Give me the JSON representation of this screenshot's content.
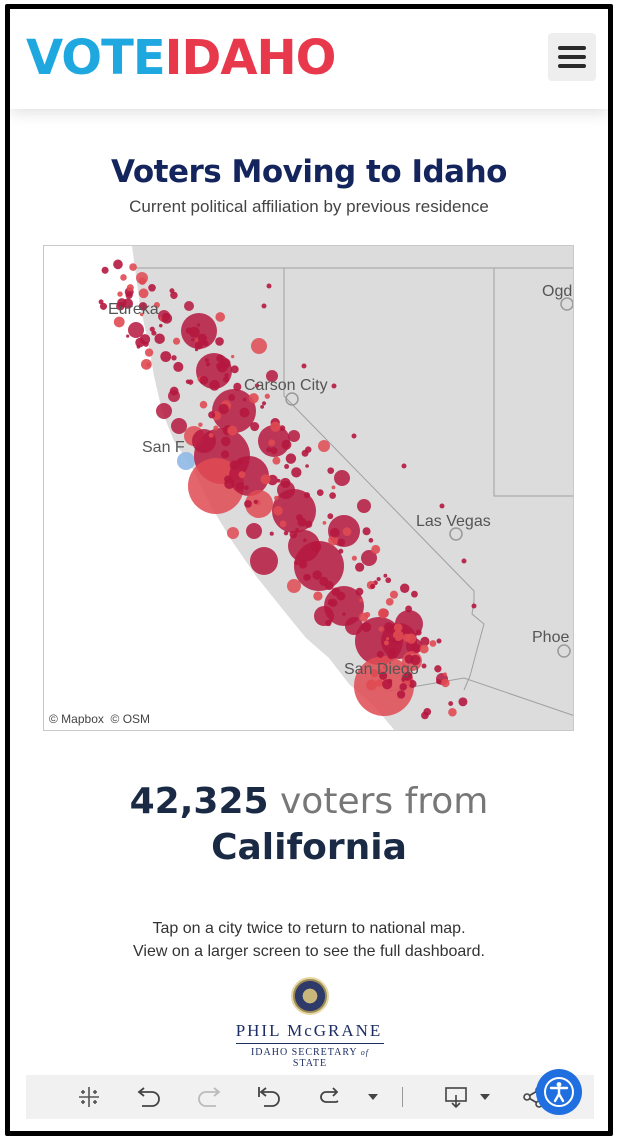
{
  "header": {
    "logo_vote": "VOTE",
    "logo_idaho": "IDAHO",
    "menu_icon": "hamburger-menu-icon"
  },
  "dashboard": {
    "title": "Voters Moving to Idaho",
    "subtitle": "Current political affiliation by previous residence"
  },
  "map": {
    "labels": {
      "eureka": "Eureka",
      "carson": "Carson City",
      "sanfran": "San F",
      "lasvegas": "Las Vegas",
      "ogden": "Ogd",
      "phoenix": "Phoe",
      "sandiego": "San Diego"
    },
    "attribution_mapbox": "© Mapbox",
    "attribution_osm": "© OSM",
    "colors": {
      "republican": "#b5173f",
      "lean_republican": "#e04a52",
      "democrat": "#8fb8e6",
      "land": "#d9d9d9",
      "water": "#ffffff"
    }
  },
  "stat": {
    "count": "42,325",
    "unit": "voters from",
    "state": "California"
  },
  "note": {
    "line1": "Tap on a city twice to return to national map.",
    "line2": "View on a larger screen to see the full dashboard."
  },
  "footer": {
    "name": "PHIL McGRANE",
    "office_left": "IDAHO SECRETARY",
    "office_of": "of",
    "office_right": "STATE"
  },
  "toolbar": {
    "icons": [
      "tableau-logo-icon",
      "undo-icon",
      "redo-icon",
      "revert-icon",
      "refresh-icon",
      "dropdown-icon",
      "download-icon",
      "share-icon"
    ]
  },
  "accessibility_icon": "accessibility-icon"
}
